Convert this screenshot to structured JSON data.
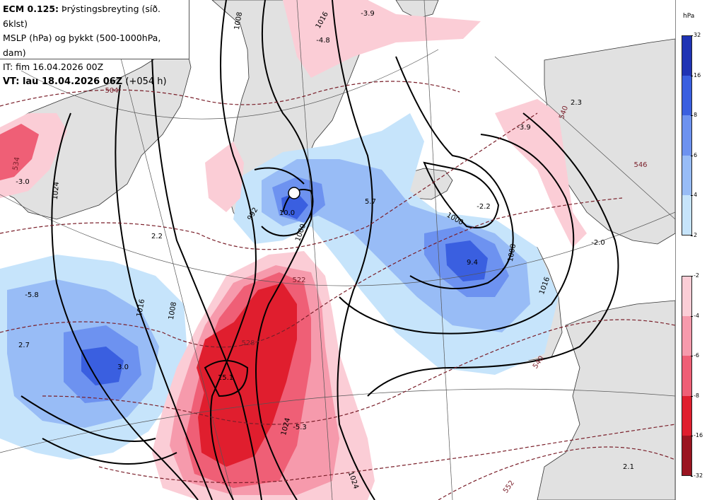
{
  "header": {
    "model": "ECM 0.125:",
    "title_rest": "Þrýstingsbreyting (síð. 6klst)",
    "line2": "MSLP (hPa) og þykkt (500-1000hPa, dam)",
    "line3": "IT: fim 16.04.2026 00Z",
    "vt_label": "VT: lau 18.04.2026 06Z",
    "vt_suffix": "(+054 h)"
  },
  "legend": {
    "unit": "hPa",
    "positive": {
      "ticks": [
        "32",
        "16",
        "8",
        "6",
        "4",
        "2"
      ],
      "colors": [
        "#1f33b4",
        "#3a5fe0",
        "#6d92f0",
        "#98bcf6",
        "#c6e4fb"
      ]
    },
    "negative": {
      "ticks": [
        "-2",
        "-4",
        "-6",
        "-8",
        "-16",
        "-32"
      ],
      "colors": [
        "#fbcdd6",
        "#f69aac",
        "#ef5f76",
        "#e01e2e",
        "#9a1420"
      ]
    }
  },
  "map_labels": {
    "change_values": [
      "-3.0",
      "-4.8",
      "-3.9",
      "2.3",
      "-3.9",
      "2.2",
      "10.0",
      "5.7",
      "-2.2",
      "9.4",
      "-2.0",
      "-5.8",
      "2.7",
      "3.0",
      "15.1",
      "-5.3",
      "2.1"
    ],
    "isobars": [
      "1008",
      "1016",
      "1024",
      "1000",
      "1000",
      "1008",
      "1016",
      "1008",
      "1016",
      "1024",
      "1024",
      "992"
    ],
    "thickness": [
      "504",
      "522",
      "528",
      "540",
      "540",
      "552",
      "546",
      "534"
    ]
  }
}
